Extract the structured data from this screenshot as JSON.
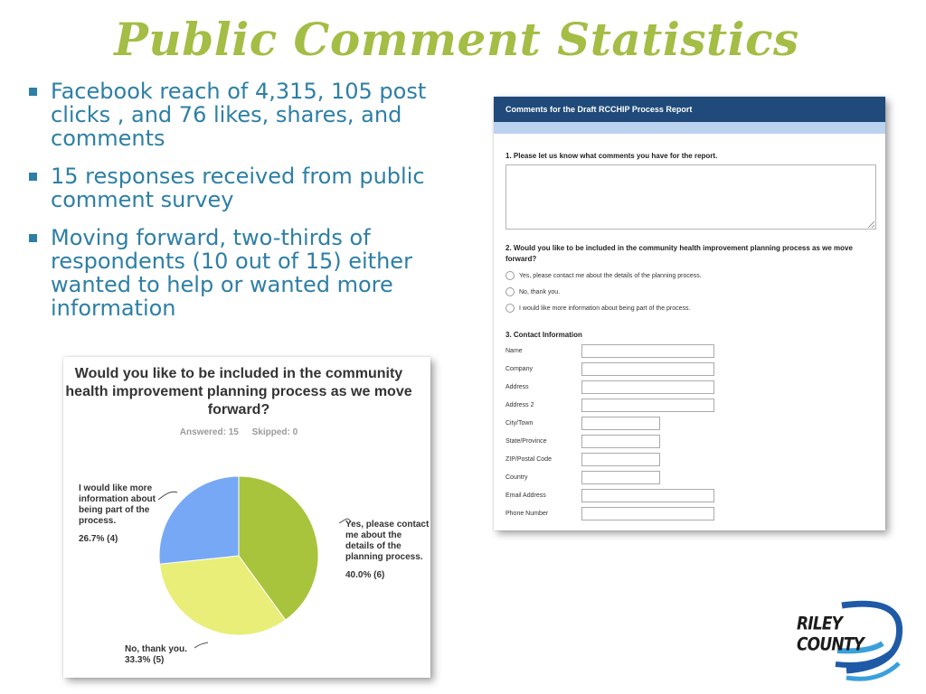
{
  "slide": {
    "title": "Public Comment Statistics",
    "bullets": [
      "Facebook reach of 4,315, 105 post clicks , and 76 likes, shares, and comments",
      "15 responses received from public comment survey",
      "Moving forward, two-thirds of respondents (10 out of 15) either wanted to help or wanted more information"
    ]
  },
  "chart_data": {
    "type": "pie",
    "title": "Would you like to be included in the community health improvement planning process as we move forward?",
    "answered": "Answered: 15",
    "skipped": "Skipped: 0",
    "slices": [
      {
        "label": "Yes, please contact me about the details of the planning process.",
        "pct_label": "40.0% (6)",
        "value": 6,
        "percent": 40.0,
        "color": "#a8c43d"
      },
      {
        "label": "No, thank you.",
        "pct_label": "33.3% (5)",
        "value": 5,
        "percent": 33.3,
        "color": "#e8ee78"
      },
      {
        "label": "I would like more information about being part of the process.",
        "pct_label": "26.7% (4)",
        "value": 4,
        "percent": 26.7,
        "color": "#76a8f5"
      }
    ]
  },
  "survey": {
    "header": "Comments for the Draft RCCHIP Process Report",
    "q1": "1. Please let us know what comments you have for the report.",
    "q2": "2. Would you like to be included in the community health improvement planning process as we move forward?",
    "q2_options": [
      "Yes, please contact me about the details of the planning process.",
      "No, thank you.",
      "I would like more information about being part of the process."
    ],
    "q3": "3. Contact Information",
    "fields": [
      "Name",
      "Company",
      "Address",
      "Address 2",
      "City/Town",
      "State/Province",
      "ZIP/Postal Code",
      "Country",
      "Email Address",
      "Phone Number"
    ]
  },
  "logo": {
    "text": "RILEY COUNTY",
    "colors": [
      "#1f5aa6",
      "#3aa0dc"
    ]
  }
}
